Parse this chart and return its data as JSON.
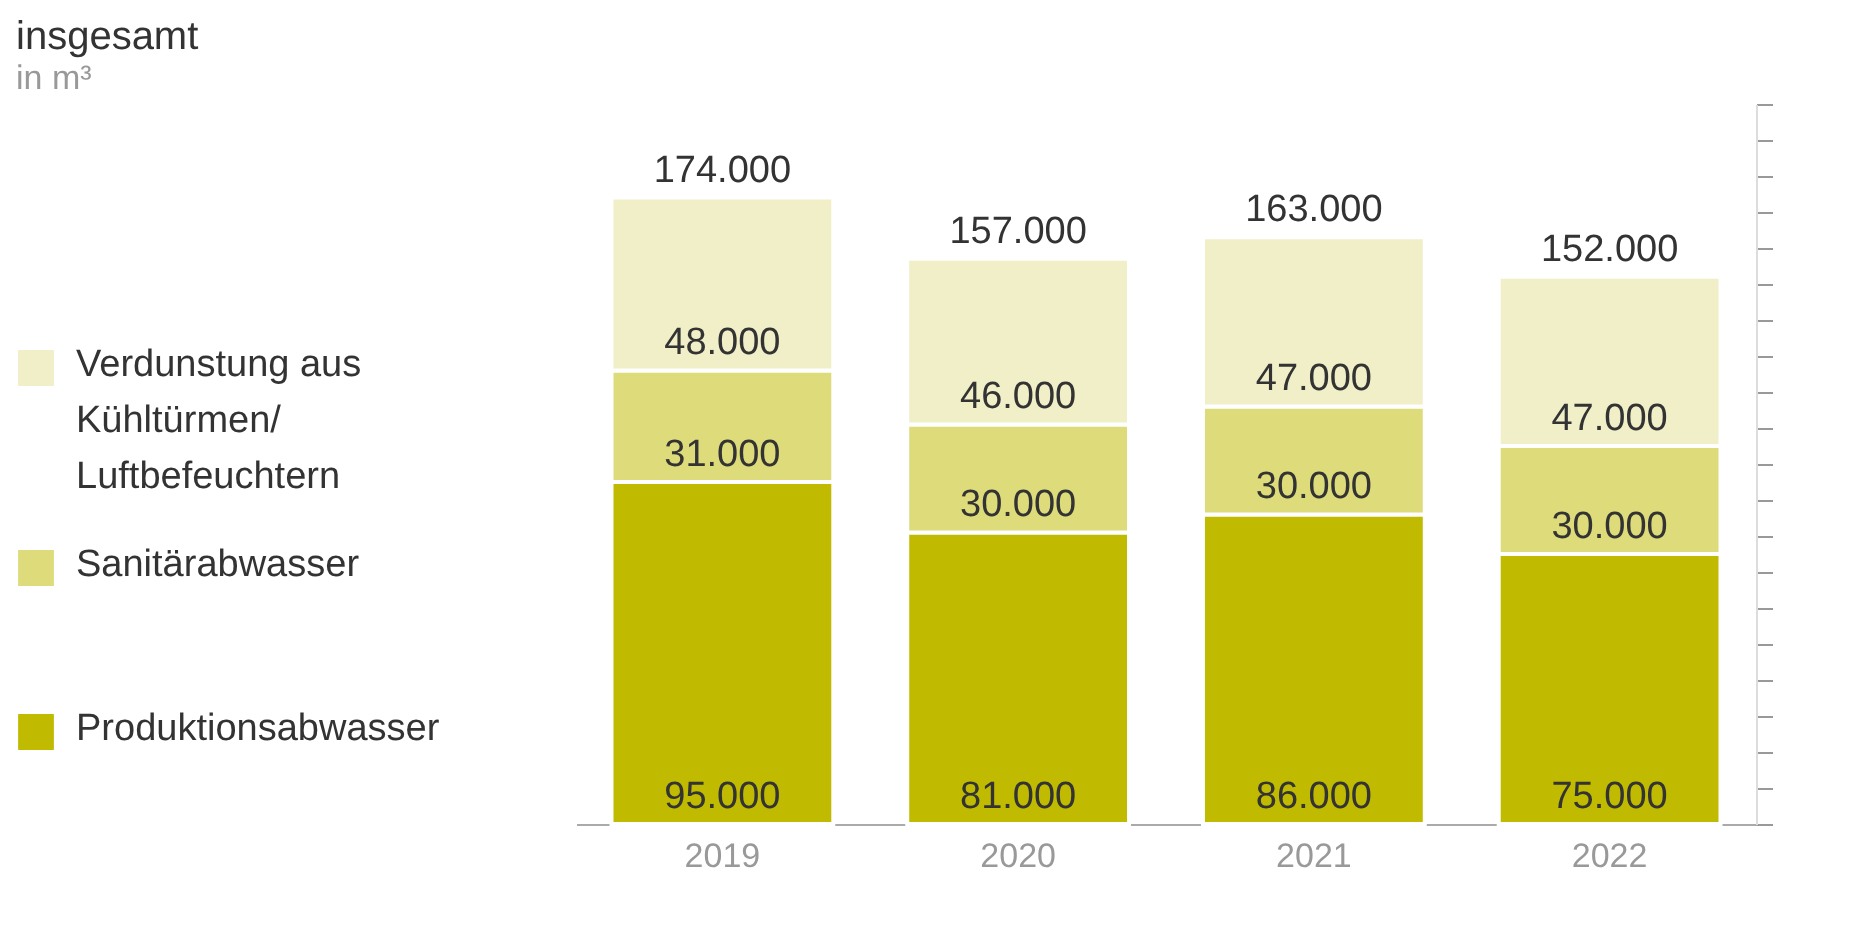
{
  "chart_data": {
    "type": "bar",
    "title": "insgesamt",
    "subtitle": "in m³",
    "categories": [
      "2019",
      "2020",
      "2021",
      "2022"
    ],
    "stacked": true,
    "series": [
      {
        "name": "Produktionsabwasser",
        "color": "#c0bb00",
        "values": [
          95000,
          81000,
          86000,
          75000
        ],
        "value_labels": [
          "95.000",
          "81.000",
          "86.000",
          "75.000"
        ]
      },
      {
        "name": "Sanitärabwasser",
        "color": "#dedb7a",
        "values": [
          31000,
          30000,
          30000,
          30000
        ],
        "value_labels": [
          "31.000",
          "30.000",
          "30.000",
          "30.000"
        ]
      },
      {
        "name": "Verdunstung aus Kühltürmen/ Luftbefeuchtern",
        "color": "#f0efc8",
        "values": [
          48000,
          46000,
          47000,
          47000
        ],
        "value_labels": [
          "48.000",
          "46.000",
          "47.000",
          "47.000"
        ]
      }
    ],
    "totals": [
      "174.000",
      "157.000",
      "163.000",
      "152.000"
    ],
    "ylim": [
      0,
      200000
    ],
    "tick_labels": "x",
    "legend": "left",
    "grid": false
  }
}
